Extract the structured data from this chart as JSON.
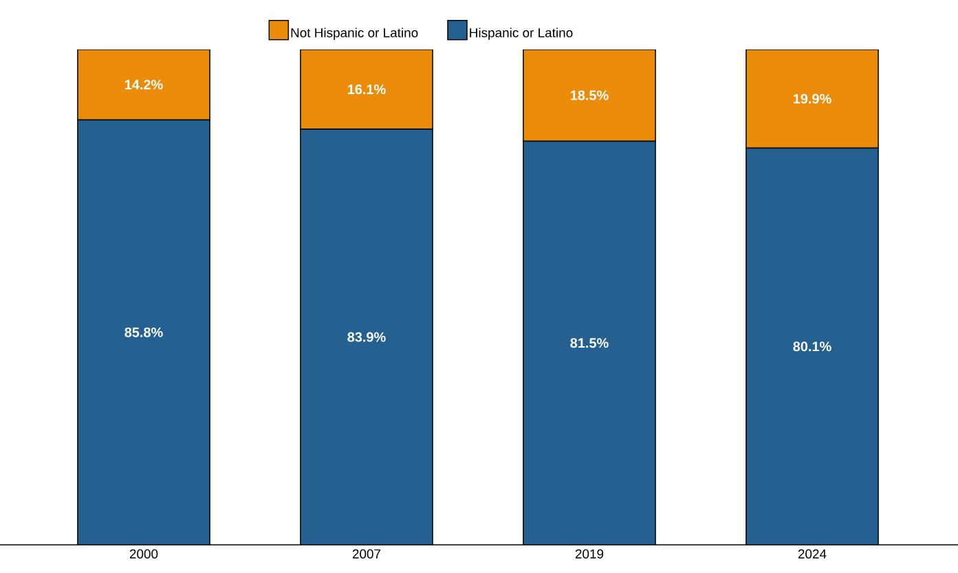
{
  "chart_data": {
    "type": "bar",
    "stacked": true,
    "categories": [
      "2000",
      "2007",
      "2019",
      "2024"
    ],
    "legend": "top",
    "tick_labels": "x",
    "series": [
      {
        "name": "Hispanic or Latino",
        "color": "#246190",
        "values": [
          85.8,
          83.9,
          81.5,
          80.1
        ],
        "value_labels": [
          "85.8%",
          "83.9%",
          "81.5%",
          "80.1%"
        ]
      },
      {
        "name": "Not Hispanic or Latino",
        "color": "#ea8c0a",
        "values": [
          14.2,
          16.1,
          18.5,
          19.9
        ],
        "value_labels": [
          "14.2%",
          "16.1%",
          "18.5%",
          "19.9%"
        ]
      }
    ]
  }
}
